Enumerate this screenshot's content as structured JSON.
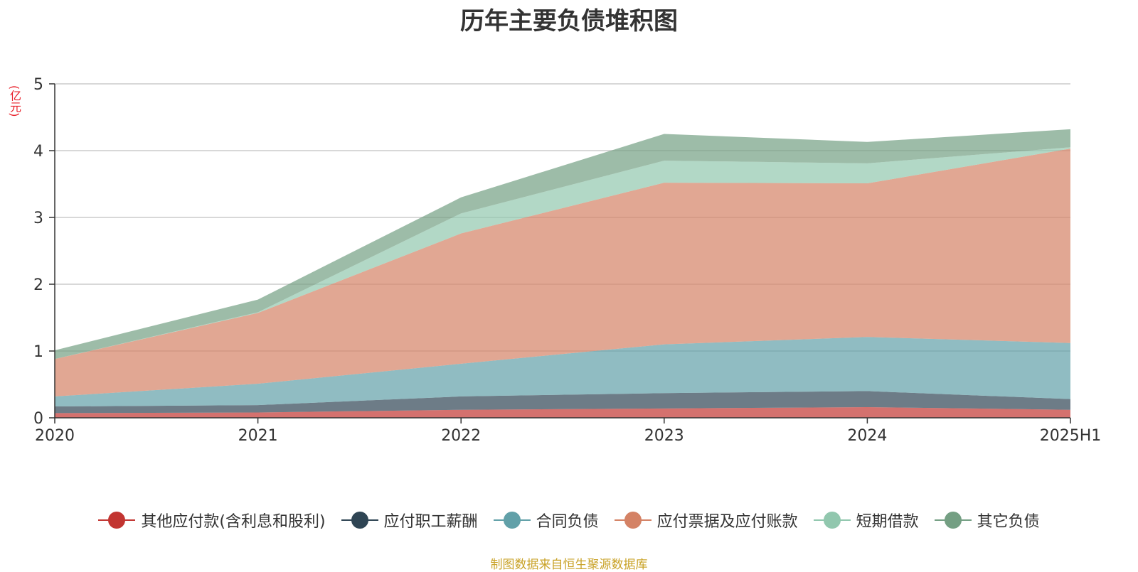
{
  "chart_data": {
    "type": "area",
    "stacked": true,
    "title": "历年主要负债堆积图",
    "ylabel": "(亿元)",
    "xlabel": "",
    "categories": [
      "2020",
      "2021",
      "2022",
      "2023",
      "2024",
      "2025H1"
    ],
    "ylim": [
      0,
      5
    ],
    "yticks": [
      0,
      1,
      2,
      3,
      4,
      5
    ],
    "grid": true,
    "legend_position": "bottom",
    "series": [
      {
        "name": "其他应付款(含利息和股利)",
        "color": "#c23531",
        "values": [
          0.07,
          0.08,
          0.12,
          0.14,
          0.16,
          0.12
        ]
      },
      {
        "name": "应付职工薪酬",
        "color": "#2f4554",
        "values": [
          0.1,
          0.11,
          0.2,
          0.23,
          0.24,
          0.16
        ]
      },
      {
        "name": "合同负债",
        "color": "#61a0a8",
        "values": [
          0.15,
          0.32,
          0.49,
          0.73,
          0.81,
          0.84
        ]
      },
      {
        "name": "应付票据及应付账款",
        "color": "#d48265",
        "values": [
          0.56,
          1.06,
          1.95,
          2.42,
          2.3,
          2.91
        ]
      },
      {
        "name": "短期借款",
        "color": "#91c7ae",
        "values": [
          0.0,
          0.01,
          0.3,
          0.33,
          0.3,
          0.02
        ]
      },
      {
        "name": "其它负债",
        "color": "#749f83",
        "values": [
          0.13,
          0.19,
          0.24,
          0.4,
          0.32,
          0.27
        ]
      }
    ]
  },
  "source": "制图数据来自恒生聚源数据库"
}
